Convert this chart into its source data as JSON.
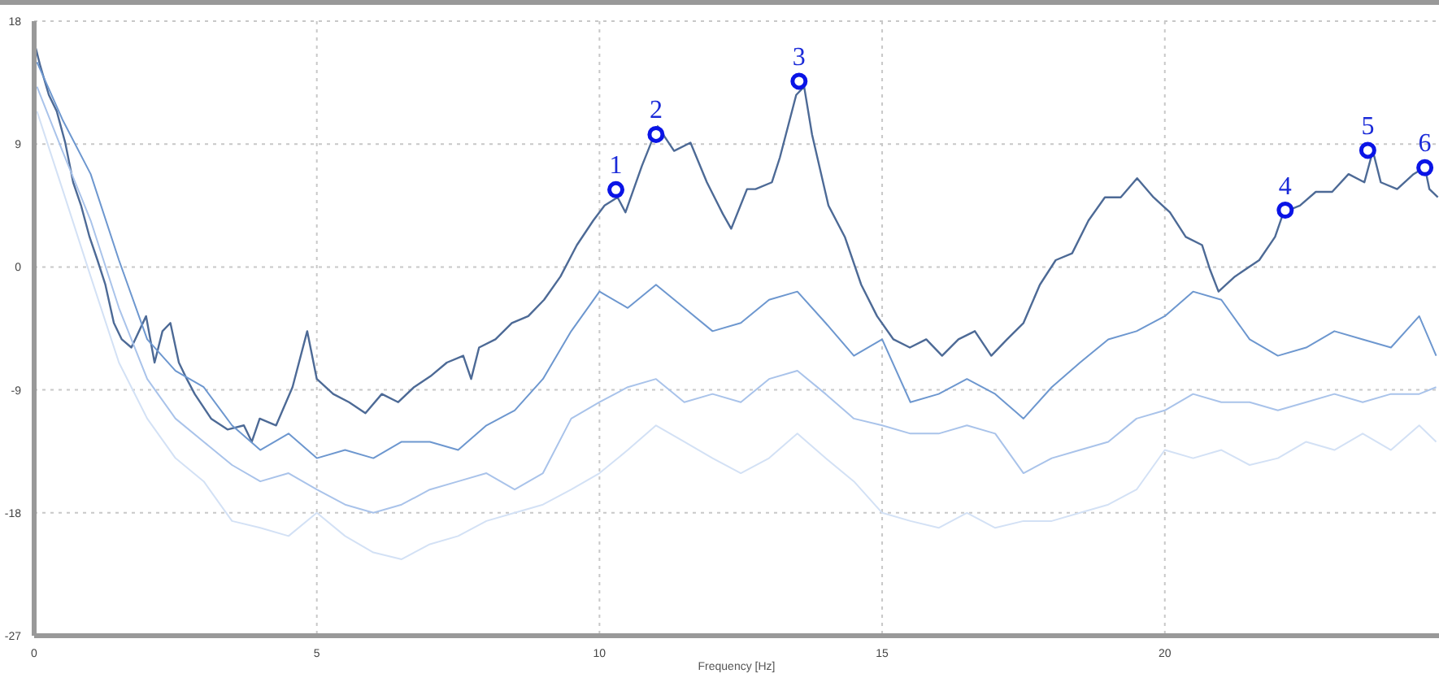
{
  "chart_data": {
    "type": "line",
    "xlabel": "Frequency [Hz]",
    "xlim": [
      0,
      24.85
    ],
    "xticks": [
      0,
      5,
      10,
      15,
      20
    ],
    "ylim": [
      -27,
      18
    ],
    "yticks": [
      -27,
      -18,
      -9,
      0,
      9,
      18
    ],
    "grid": true,
    "legend": false,
    "marker": "none",
    "line_style": "solid",
    "x": [
      0.05,
      0.5,
      1,
      1.5,
      2,
      2.5,
      3,
      3.5,
      4,
      4.5,
      5,
      5.5,
      6,
      6.5,
      7,
      7.5,
      8,
      8.5,
      9,
      9.5,
      10,
      10.5,
      11,
      11.5,
      12,
      12.5,
      13,
      13.5,
      14,
      14.5,
      15,
      15.5,
      16,
      16.5,
      17,
      17.5,
      18,
      18.5,
      19,
      19.5,
      20,
      20.5,
      21,
      21.5,
      22,
      22.5,
      23,
      23.5,
      24,
      24.5,
      24.8
    ],
    "series": [
      {
        "color": "#4d6a96",
        "x": [
          0.03,
          0.11,
          0.26,
          0.4,
          0.55,
          0.69,
          0.83,
          0.98,
          1.12,
          1.26,
          1.41,
          1.55,
          1.72,
          1.98,
          2.13,
          2.27,
          2.41,
          2.56,
          2.7,
          2.84,
          3.13,
          3.42,
          3.71,
          3.85,
          3.99,
          4.28,
          4.57,
          4.83,
          5.0,
          5.29,
          5.57,
          5.86,
          6.15,
          6.44,
          6.72,
          7.01,
          7.3,
          7.59,
          7.73,
          7.87,
          8.16,
          8.45,
          8.74,
          9.02,
          9.31,
          9.6,
          9.89,
          10.09,
          10.32,
          10.46,
          10.75,
          11.03,
          11.32,
          11.61,
          11.9,
          12.18,
          12.33,
          12.61,
          12.76,
          13.05,
          13.19,
          13.48,
          13.62,
          13.76,
          14.05,
          14.34,
          14.63,
          14.91,
          15.2,
          15.49,
          15.78,
          16.06,
          16.35,
          16.64,
          16.93,
          17.21,
          17.5,
          17.79,
          18.07,
          18.36,
          18.65,
          18.94,
          19.22,
          19.51,
          19.8,
          20.09,
          20.37,
          20.66,
          20.8,
          20.95,
          21.24,
          21.67,
          21.95,
          22.1,
          22.39,
          22.67,
          22.96,
          23.25,
          23.53,
          23.68,
          23.82,
          24.11,
          24.4,
          24.6,
          24.68,
          24.83
        ],
        "values": [
          16.0,
          14.7,
          12.6,
          11.4,
          9.1,
          6.2,
          4.5,
          2.2,
          0.5,
          -1.3,
          -4.1,
          -5.3,
          -5.9,
          -3.6,
          -7.0,
          -4.7,
          -4.1,
          -7.0,
          -8.2,
          -9.3,
          -11.1,
          -11.9,
          -11.6,
          -12.8,
          -11.1,
          -11.6,
          -8.8,
          -4.7,
          -8.2,
          -9.3,
          -9.9,
          -10.7,
          -9.3,
          -9.9,
          -8.8,
          -8.0,
          -7.0,
          -6.5,
          -8.2,
          -5.9,
          -5.3,
          -4.1,
          -3.6,
          -2.4,
          -0.7,
          1.6,
          3.4,
          4.5,
          5.1,
          4.0,
          7.4,
          10.3,
          8.5,
          9.1,
          6.2,
          3.9,
          2.8,
          5.7,
          5.7,
          6.2,
          8.0,
          12.6,
          13.2,
          9.7,
          4.5,
          2.2,
          -1.3,
          -3.6,
          -5.3,
          -5.9,
          -5.3,
          -6.5,
          -5.3,
          -4.7,
          -6.5,
          -5.3,
          -4.1,
          -1.3,
          0.5,
          1.0,
          3.4,
          5.1,
          5.1,
          6.5,
          5.1,
          4.0,
          2.2,
          1.6,
          -0.2,
          -1.8,
          -0.7,
          0.5,
          2.2,
          4.0,
          4.5,
          5.5,
          5.5,
          6.8,
          6.2,
          8.5,
          6.2,
          5.7,
          6.8,
          7.3,
          5.7,
          5.1
        ]
      },
      {
        "color": "#6d97cf",
        "values": [
          15.0,
          10.8,
          6.8,
          0.5,
          -5.3,
          -7.6,
          -8.8,
          -11.6,
          -13.4,
          -12.2,
          -14.0,
          -13.4,
          -14.0,
          -12.8,
          -12.8,
          -13.4,
          -11.6,
          -10.5,
          -8.2,
          -4.7,
          -1.8,
          -3.0,
          -1.3,
          -3.0,
          -4.7,
          -4.1,
          -2.4,
          -1.8,
          -4.1,
          -6.5,
          -5.3,
          -9.9,
          -9.3,
          -8.2,
          -9.3,
          -11.1,
          -8.8,
          -7.0,
          -5.3,
          -4.7,
          -3.6,
          -1.8,
          -2.4,
          -5.3,
          -6.5,
          -5.9,
          -4.7,
          -5.3,
          -5.9,
          -3.6,
          -6.5
        ]
      },
      {
        "color": "#a9c3ea",
        "values": [
          13.2,
          8.5,
          3.4,
          -3.0,
          -8.2,
          -11.1,
          -12.8,
          -14.5,
          -15.7,
          -15.1,
          -16.3,
          -17.4,
          -18.0,
          -17.4,
          -16.3,
          -15.7,
          -15.1,
          -16.3,
          -15.1,
          -11.1,
          -9.9,
          -8.8,
          -8.2,
          -9.9,
          -9.3,
          -9.9,
          -8.2,
          -7.6,
          -9.3,
          -11.1,
          -11.6,
          -12.2,
          -12.2,
          -11.6,
          -12.2,
          -15.1,
          -14.0,
          -13.4,
          -12.8,
          -11.1,
          -10.5,
          -9.3,
          -9.9,
          -9.9,
          -10.5,
          -9.9,
          -9.3,
          -9.9,
          -9.3,
          -9.3,
          -8.8
        ]
      },
      {
        "color": "#d3e1f5",
        "values": [
          11.4,
          5.7,
          -0.7,
          -7.0,
          -11.1,
          -14.0,
          -15.7,
          -18.6,
          -19.1,
          -19.7,
          -18.0,
          -19.7,
          -20.9,
          -21.4,
          -20.3,
          -19.7,
          -18.6,
          -18.0,
          -17.4,
          -16.3,
          -15.1,
          -13.4,
          -11.6,
          -12.8,
          -14.0,
          -15.1,
          -14.0,
          -12.2,
          -14.0,
          -15.7,
          -18.0,
          -18.6,
          -19.1,
          -18.0,
          -19.1,
          -18.6,
          -18.6,
          -18.0,
          -17.4,
          -16.3,
          -13.4,
          -14.0,
          -13.4,
          -14.5,
          -14.0,
          -12.8,
          -13.4,
          -12.2,
          -13.4,
          -11.6,
          -12.8
        ]
      }
    ],
    "annotations": [
      {
        "text": "1",
        "x": 10.29,
        "y": 5.66
      },
      {
        "text": "2",
        "x": 11.0,
        "y": 9.7
      },
      {
        "text": "3",
        "x": 13.53,
        "y": 13.6
      },
      {
        "text": "4",
        "x": 22.13,
        "y": 4.16
      },
      {
        "text": "5",
        "x": 23.59,
        "y": 8.54
      },
      {
        "text": "6",
        "x": 24.6,
        "y": 7.27
      }
    ]
  }
}
